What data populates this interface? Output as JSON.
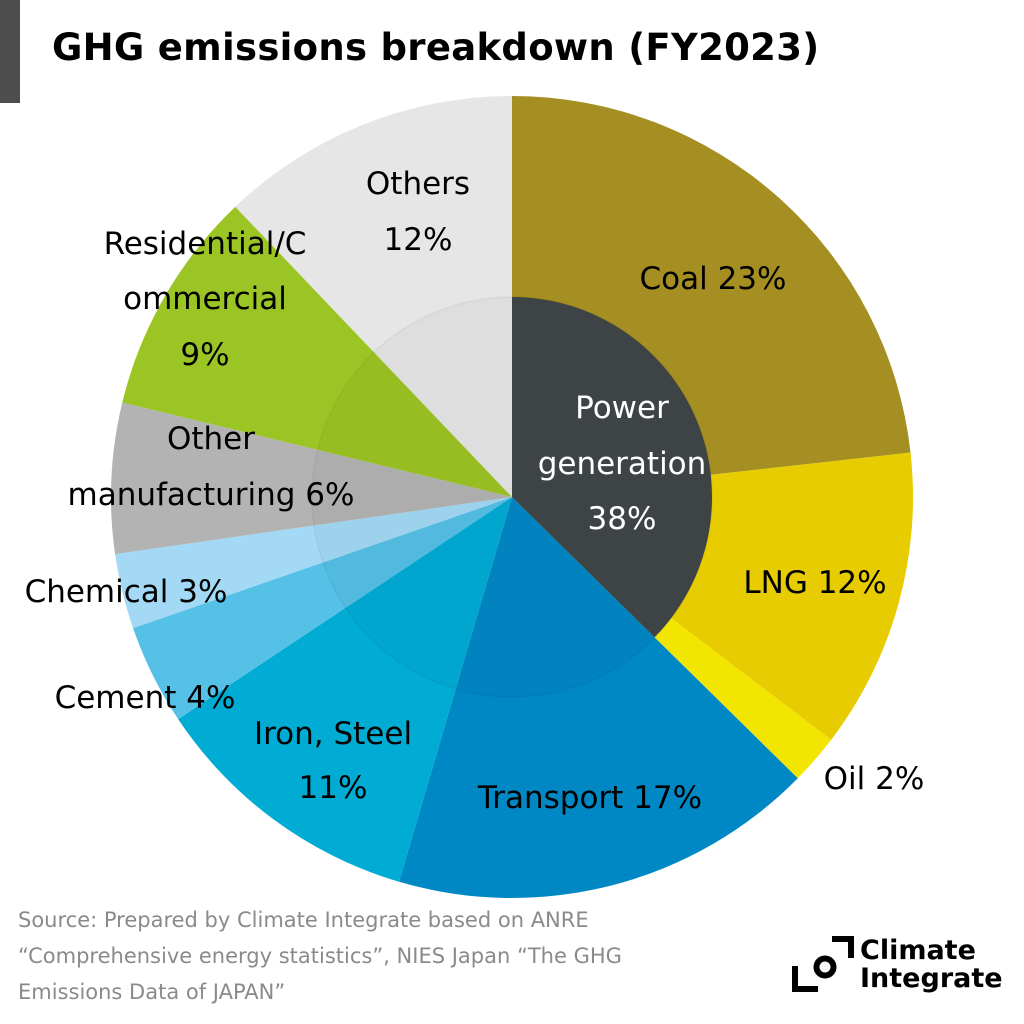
{
  "title": "GHG emissions breakdown (FY2023)",
  "source_lines": [
    "Source: Prepared by Climate Integrate based on ANRE",
    "“Comprehensive energy statistics”, NIES Japan “The GHG",
    "Emissions Data of JAPAN”"
  ],
  "logo": {
    "line1": "Climate",
    "line2": "Integrate"
  },
  "chart_data": {
    "type": "pie",
    "title": "GHG emissions breakdown (FY2023)",
    "unit": "%",
    "start": "top",
    "direction": "clockwise",
    "slices": [
      {
        "name": "Coal",
        "value": 23,
        "color": "#a58f22",
        "label_lines": [
          "Coal 23%"
        ]
      },
      {
        "name": "LNG",
        "value": 12,
        "color": "#e6cc00",
        "label_lines": [
          "LNG 12%"
        ]
      },
      {
        "name": "Oil",
        "value": 2,
        "color": "#f2e600",
        "label_lines": [
          "Oil 2%"
        ]
      },
      {
        "name": "Transport",
        "value": 17,
        "color": "#0088c5",
        "label_lines": [
          "Transport 17%"
        ]
      },
      {
        "name": "Iron, Steel",
        "value": 11,
        "color": "#00acd4",
        "label_lines": [
          "Iron, Steel",
          "11%"
        ]
      },
      {
        "name": "Cement",
        "value": 4,
        "color": "#55c1e6",
        "label_lines": [
          "Cement 4%"
        ]
      },
      {
        "name": "Chemical",
        "value": 3,
        "color": "#a3d9f5",
        "label_lines": [
          "Chemical 3%"
        ]
      },
      {
        "name": "Other manufacturing",
        "value": 6,
        "color": "#b3b3b3",
        "label_lines": [
          "Other",
          "manufacturing 6%"
        ]
      },
      {
        "name": "Residential/Commercial",
        "value": 9,
        "color": "#9bc524",
        "label_lines": [
          "Residential/C",
          "ommercial",
          "9%"
        ]
      },
      {
        "name": "Others",
        "value": 12,
        "color": "#e6e6e6",
        "label_lines": [
          "Others",
          "12%"
        ]
      }
    ],
    "inner_group": {
      "name": "Power generation",
      "value": 38,
      "members": [
        "Coal",
        "LNG",
        "Oil"
      ],
      "color": "#3e4346",
      "label_lines": [
        "Power",
        "generation",
        "38%"
      ]
    }
  }
}
